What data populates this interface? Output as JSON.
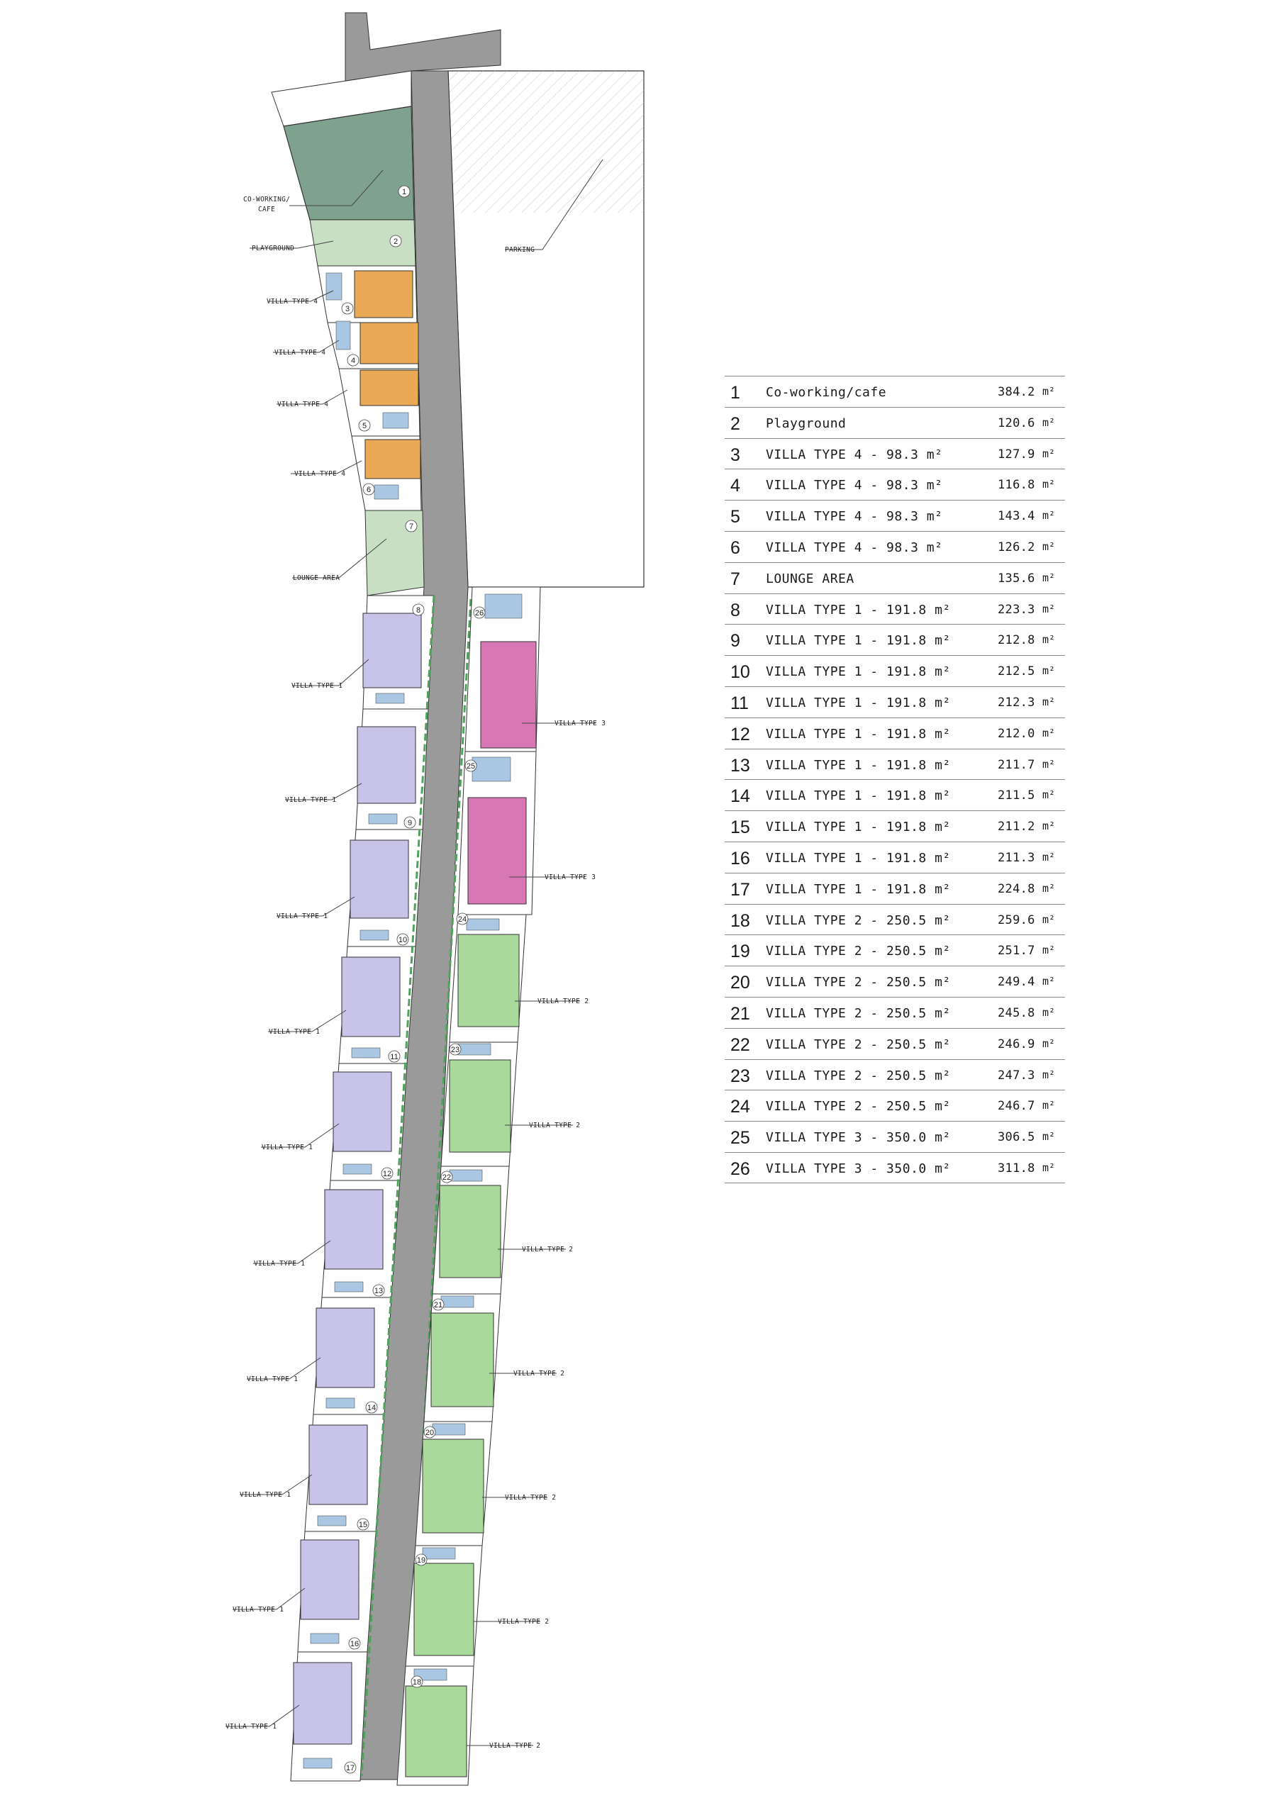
{
  "colors": {
    "cafe": "#7fa28e",
    "green_zone": "#c9dfc4",
    "villa_type_1": "#c8c3e9",
    "villa_type_2": "#a9d99b",
    "villa_type_3": "#d777b3",
    "villa_type_4": "#eaa955",
    "road": "#9a9a9a",
    "pool": "#a9c7e2",
    "hedge": "#4fa25c"
  },
  "plan_labels": {
    "cafe_line1": "CO-WORKING/",
    "cafe_line2": "CAFE",
    "playground": "PLAYGROUND",
    "parking": "PARKING",
    "lounge": "LOUNGE AREA",
    "villa4": "VILLA TYPE 4",
    "villa1": "VILLA TYPE 1",
    "villa2": "VILLA TYPE 2",
    "villa3": "VILLA TYPE 3"
  },
  "plots": [
    {
      "no": "1"
    },
    {
      "no": "2"
    },
    {
      "no": "3"
    },
    {
      "no": "4"
    },
    {
      "no": "5"
    },
    {
      "no": "6"
    },
    {
      "no": "7"
    },
    {
      "no": "8"
    },
    {
      "no": "9"
    },
    {
      "no": "10"
    },
    {
      "no": "11"
    },
    {
      "no": "12"
    },
    {
      "no": "13"
    },
    {
      "no": "14"
    },
    {
      "no": "15"
    },
    {
      "no": "16"
    },
    {
      "no": "17"
    },
    {
      "no": "18"
    },
    {
      "no": "19"
    },
    {
      "no": "20"
    },
    {
      "no": "21"
    },
    {
      "no": "22"
    },
    {
      "no": "23"
    },
    {
      "no": "24"
    },
    {
      "no": "25"
    },
    {
      "no": "26"
    }
  ],
  "area_table": {
    "unit": "m²",
    "rows": [
      {
        "no": "1",
        "name": "Co-working/cafe",
        "area": "384.2"
      },
      {
        "no": "2",
        "name": "Playground",
        "area": "120.6"
      },
      {
        "no": "3",
        "name": "VILLA TYPE 4 - 98.3 m²",
        "area": "127.9"
      },
      {
        "no": "4",
        "name": "VILLA TYPE 4 - 98.3 m²",
        "area": "116.8"
      },
      {
        "no": "5",
        "name": "VILLA TYPE 4 - 98.3 m²",
        "area": "143.4"
      },
      {
        "no": "6",
        "name": "VILLA TYPE 4 - 98.3 m²",
        "area": "126.2"
      },
      {
        "no": "7",
        "name": "LOUNGE AREA",
        "area": "135.6"
      },
      {
        "no": "8",
        "name": "VILLA TYPE 1 - 191.8 m²",
        "area": "223.3"
      },
      {
        "no": "9",
        "name": "VILLA TYPE 1 - 191.8 m²",
        "area": "212.8"
      },
      {
        "no": "10",
        "name": "VILLA TYPE 1 - 191.8 m²",
        "area": "212.5"
      },
      {
        "no": "11",
        "name": "VILLA TYPE 1 - 191.8 m²",
        "area": "212.3"
      },
      {
        "no": "12",
        "name": "VILLA TYPE 1 - 191.8 m²",
        "area": "212.0"
      },
      {
        "no": "13",
        "name": "VILLA TYPE 1 - 191.8 m²",
        "area": "211.7"
      },
      {
        "no": "14",
        "name": "VILLA TYPE 1 - 191.8 m²",
        "area": "211.5"
      },
      {
        "no": "15",
        "name": "VILLA TYPE 1 - 191.8 m²",
        "area": "211.2"
      },
      {
        "no": "16",
        "name": "VILLA TYPE 1 - 191.8 m²",
        "area": "211.3"
      },
      {
        "no": "17",
        "name": "VILLA TYPE 1 - 191.8 m²",
        "area": "224.8"
      },
      {
        "no": "18",
        "name": "VILLA TYPE 2 - 250.5 m²",
        "area": "259.6"
      },
      {
        "no": "19",
        "name": "VILLA TYPE 2 - 250.5 m²",
        "area": "251.7"
      },
      {
        "no": "20",
        "name": "VILLA TYPE 2 - 250.5 m²",
        "area": "249.4"
      },
      {
        "no": "21",
        "name": "VILLA TYPE 2 - 250.5 m²",
        "area": "245.8"
      },
      {
        "no": "22",
        "name": "VILLA TYPE 2 - 250.5 m²",
        "area": "246.9"
      },
      {
        "no": "23",
        "name": "VILLA TYPE 2 - 250.5 m²",
        "area": "247.3"
      },
      {
        "no": "24",
        "name": "VILLA TYPE 2 - 250.5 m²",
        "area": "246.7"
      },
      {
        "no": "25",
        "name": "VILLA TYPE 3 - 350.0 m²",
        "area": "306.5"
      },
      {
        "no": "26",
        "name": "VILLA TYPE 3 - 350.0 m²",
        "area": "311.8"
      }
    ]
  }
}
